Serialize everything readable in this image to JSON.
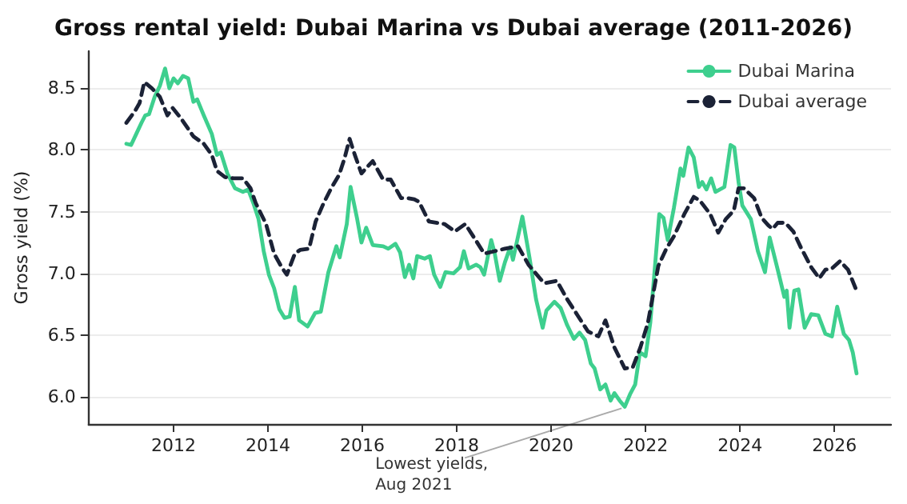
{
  "chart_data": {
    "type": "line",
    "title": "Gross rental yield: Dubai Marina vs Dubai average (2011-2026)",
    "ylabel": "Gross yield (%)",
    "xlim": [
      2010.2,
      2027.2
    ],
    "xticks": [
      2012,
      2014,
      2016,
      2018,
      2020,
      2022,
      2024,
      2026
    ],
    "ylim": [
      5.78,
      8.8
    ],
    "yticks": [
      {
        "value": 6.0,
        "label": "6.0"
      },
      {
        "value": 6.5,
        "label": "6.5"
      },
      {
        "value": 7.0,
        "label": "7.0"
      },
      {
        "value": 7.5,
        "label": "7.5"
      },
      {
        "value": 8.0,
        "label": "8.0"
      },
      {
        "value": 8.5,
        "label": "8.5"
      }
    ],
    "grid": "y",
    "legend": "top right",
    "marker": "none",
    "annotations": [
      {
        "text": "Lowest yields,\nAug 2021",
        "x": 2021.56,
        "y": 5.92
      }
    ],
    "series": [
      {
        "name": "Dubai Marina",
        "color": "#3ecf8e",
        "line_style": "solid",
        "x": [
          2011.0,
          2011.1,
          2011.21,
          2011.32,
          2011.4,
          2011.48,
          2011.6,
          2011.71,
          2011.82,
          2011.91,
          2012.0,
          2012.09,
          2012.2,
          2012.31,
          2012.42,
          2012.5,
          2012.64,
          2012.81,
          2012.92,
          2013.0,
          2013.14,
          2013.3,
          2013.47,
          2013.58,
          2013.69,
          2013.8,
          2013.91,
          2014.02,
          2014.13,
          2014.24,
          2014.35,
          2014.46,
          2014.57,
          2014.66,
          2014.84,
          2015.0,
          2015.12,
          2015.28,
          2015.45,
          2015.52,
          2015.67,
          2015.75,
          2015.89,
          2015.98,
          2016.08,
          2016.22,
          2016.44,
          2016.55,
          2016.7,
          2016.8,
          2016.9,
          2016.99,
          2017.08,
          2017.16,
          2017.32,
          2017.43,
          2017.52,
          2017.65,
          2017.76,
          2017.93,
          2018.07,
          2018.15,
          2018.25,
          2018.41,
          2018.5,
          2018.58,
          2018.73,
          2018.8,
          2018.91,
          2019.02,
          2019.13,
          2019.19,
          2019.39,
          2019.54,
          2019.68,
          2019.82,
          2019.9,
          2020.07,
          2020.2,
          2020.34,
          2020.48,
          2020.6,
          2020.72,
          2020.84,
          2020.92,
          2021.04,
          2021.15,
          2021.26,
          2021.34,
          2021.45,
          2021.56,
          2021.67,
          2021.78,
          2021.88,
          2022.0,
          2022.1,
          2022.2,
          2022.29,
          2022.38,
          2022.47,
          2022.6,
          2022.74,
          2022.8,
          2022.91,
          2023.02,
          2023.13,
          2023.2,
          2023.29,
          2023.39,
          2023.48,
          2023.67,
          2023.8,
          2023.88,
          2023.97,
          2024.05,
          2024.23,
          2024.38,
          2024.53,
          2024.63,
          2024.8,
          2024.94,
          2024.99,
          2025.05,
          2025.15,
          2025.24,
          2025.37,
          2025.51,
          2025.66,
          2025.81,
          2025.95,
          2026.06,
          2026.2,
          2026.31,
          2026.39,
          2026.47
        ],
        "values": [
          8.05,
          8.04,
          8.13,
          8.22,
          8.28,
          8.29,
          8.43,
          8.52,
          8.66,
          8.5,
          8.58,
          8.54,
          8.6,
          8.58,
          8.39,
          8.41,
          8.28,
          8.13,
          7.96,
          7.98,
          7.81,
          7.69,
          7.66,
          7.68,
          7.57,
          7.44,
          7.18,
          6.99,
          6.88,
          6.71,
          6.64,
          6.65,
          6.89,
          6.62,
          6.57,
          6.68,
          6.69,
          7.01,
          7.22,
          7.13,
          7.4,
          7.7,
          7.44,
          7.25,
          7.37,
          7.23,
          7.22,
          7.2,
          7.24,
          7.17,
          6.97,
          7.07,
          6.96,
          7.14,
          7.12,
          7.14,
          6.99,
          6.89,
          7.01,
          7.0,
          7.05,
          7.18,
          7.04,
          7.07,
          7.05,
          6.99,
          7.27,
          7.17,
          6.94,
          7.09,
          7.21,
          7.11,
          7.46,
          7.13,
          6.79,
          6.56,
          6.7,
          6.77,
          6.72,
          6.58,
          6.47,
          6.52,
          6.46,
          6.27,
          6.23,
          6.06,
          6.1,
          5.97,
          6.03,
          5.97,
          5.92,
          6.02,
          6.1,
          6.36,
          6.33,
          6.6,
          7.06,
          7.48,
          7.45,
          7.27,
          7.53,
          7.85,
          7.79,
          8.02,
          7.94,
          7.7,
          7.74,
          7.68,
          7.77,
          7.66,
          7.7,
          8.04,
          8.02,
          7.74,
          7.55,
          7.44,
          7.18,
          7.01,
          7.29,
          7.03,
          6.81,
          6.86,
          6.56,
          6.86,
          6.87,
          6.56,
          6.67,
          6.66,
          6.51,
          6.49,
          6.73,
          6.51,
          6.46,
          6.36,
          6.19
        ]
      },
      {
        "name": "Dubai average",
        "color": "#1b2236",
        "line_style": "dashed",
        "x": [
          2011.0,
          2011.19,
          2011.28,
          2011.38,
          2011.54,
          2011.71,
          2011.87,
          2011.98,
          2012.15,
          2012.42,
          2012.64,
          2012.81,
          2012.92,
          2013.09,
          2013.27,
          2013.47,
          2013.63,
          2013.74,
          2013.96,
          2014.13,
          2014.29,
          2014.4,
          2014.57,
          2014.68,
          2014.87,
          2015.01,
          2015.18,
          2015.34,
          2015.51,
          2015.62,
          2015.73,
          2015.84,
          2015.98,
          2016.22,
          2016.44,
          2016.6,
          2016.82,
          2016.96,
          2017.1,
          2017.2,
          2017.41,
          2017.74,
          2017.96,
          2018.18,
          2018.4,
          2018.58,
          2018.8,
          2019.02,
          2019.3,
          2019.52,
          2019.85,
          2020.12,
          2020.34,
          2020.56,
          2020.78,
          2021.0,
          2021.15,
          2021.34,
          2021.56,
          2021.73,
          2021.89,
          2022.05,
          2022.27,
          2022.44,
          2022.6,
          2022.82,
          2023.02,
          2023.15,
          2023.37,
          2023.54,
          2023.7,
          2023.87,
          2023.97,
          2024.08,
          2024.3,
          2024.46,
          2024.6,
          2024.69,
          2024.8,
          2024.96,
          2025.13,
          2025.29,
          2025.51,
          2025.68,
          2025.81,
          2025.95,
          2026.12,
          2026.29,
          2026.47
        ],
        "values": [
          8.22,
          8.32,
          8.38,
          8.55,
          8.5,
          8.43,
          8.28,
          8.34,
          8.26,
          8.11,
          8.05,
          7.96,
          7.83,
          7.78,
          7.77,
          7.77,
          7.69,
          7.57,
          7.4,
          7.16,
          7.05,
          6.99,
          7.16,
          7.19,
          7.2,
          7.42,
          7.57,
          7.69,
          7.8,
          7.93,
          8.09,
          7.96,
          7.81,
          7.91,
          7.76,
          7.76,
          7.61,
          7.61,
          7.6,
          7.58,
          7.42,
          7.4,
          7.34,
          7.4,
          7.27,
          7.16,
          7.18,
          7.2,
          7.22,
          7.07,
          6.92,
          6.94,
          6.79,
          6.66,
          6.53,
          6.49,
          6.62,
          6.4,
          6.23,
          6.24,
          6.4,
          6.6,
          7.06,
          7.2,
          7.3,
          7.48,
          7.62,
          7.59,
          7.48,
          7.33,
          7.44,
          7.51,
          7.69,
          7.69,
          7.61,
          7.45,
          7.39,
          7.36,
          7.41,
          7.41,
          7.34,
          7.21,
          7.05,
          6.96,
          7.03,
          7.04,
          7.1,
          7.03,
          6.86
        ]
      }
    ]
  }
}
